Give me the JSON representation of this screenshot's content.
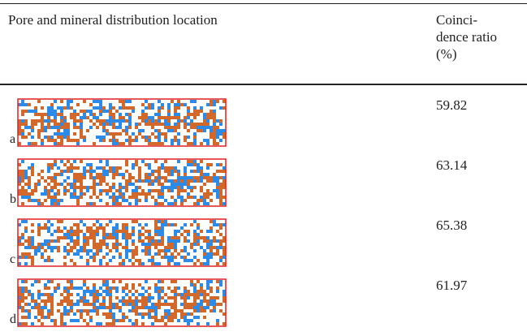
{
  "table": {
    "header": [
      "Pore and mineral distribution location",
      "Coinci-dence ratio (%)"
    ],
    "rows": [
      [
        "a",
        59.82
      ],
      [
        "b",
        63.14
      ],
      [
        "c",
        65.38
      ],
      [
        "d",
        61.97
      ]
    ]
  }
}
